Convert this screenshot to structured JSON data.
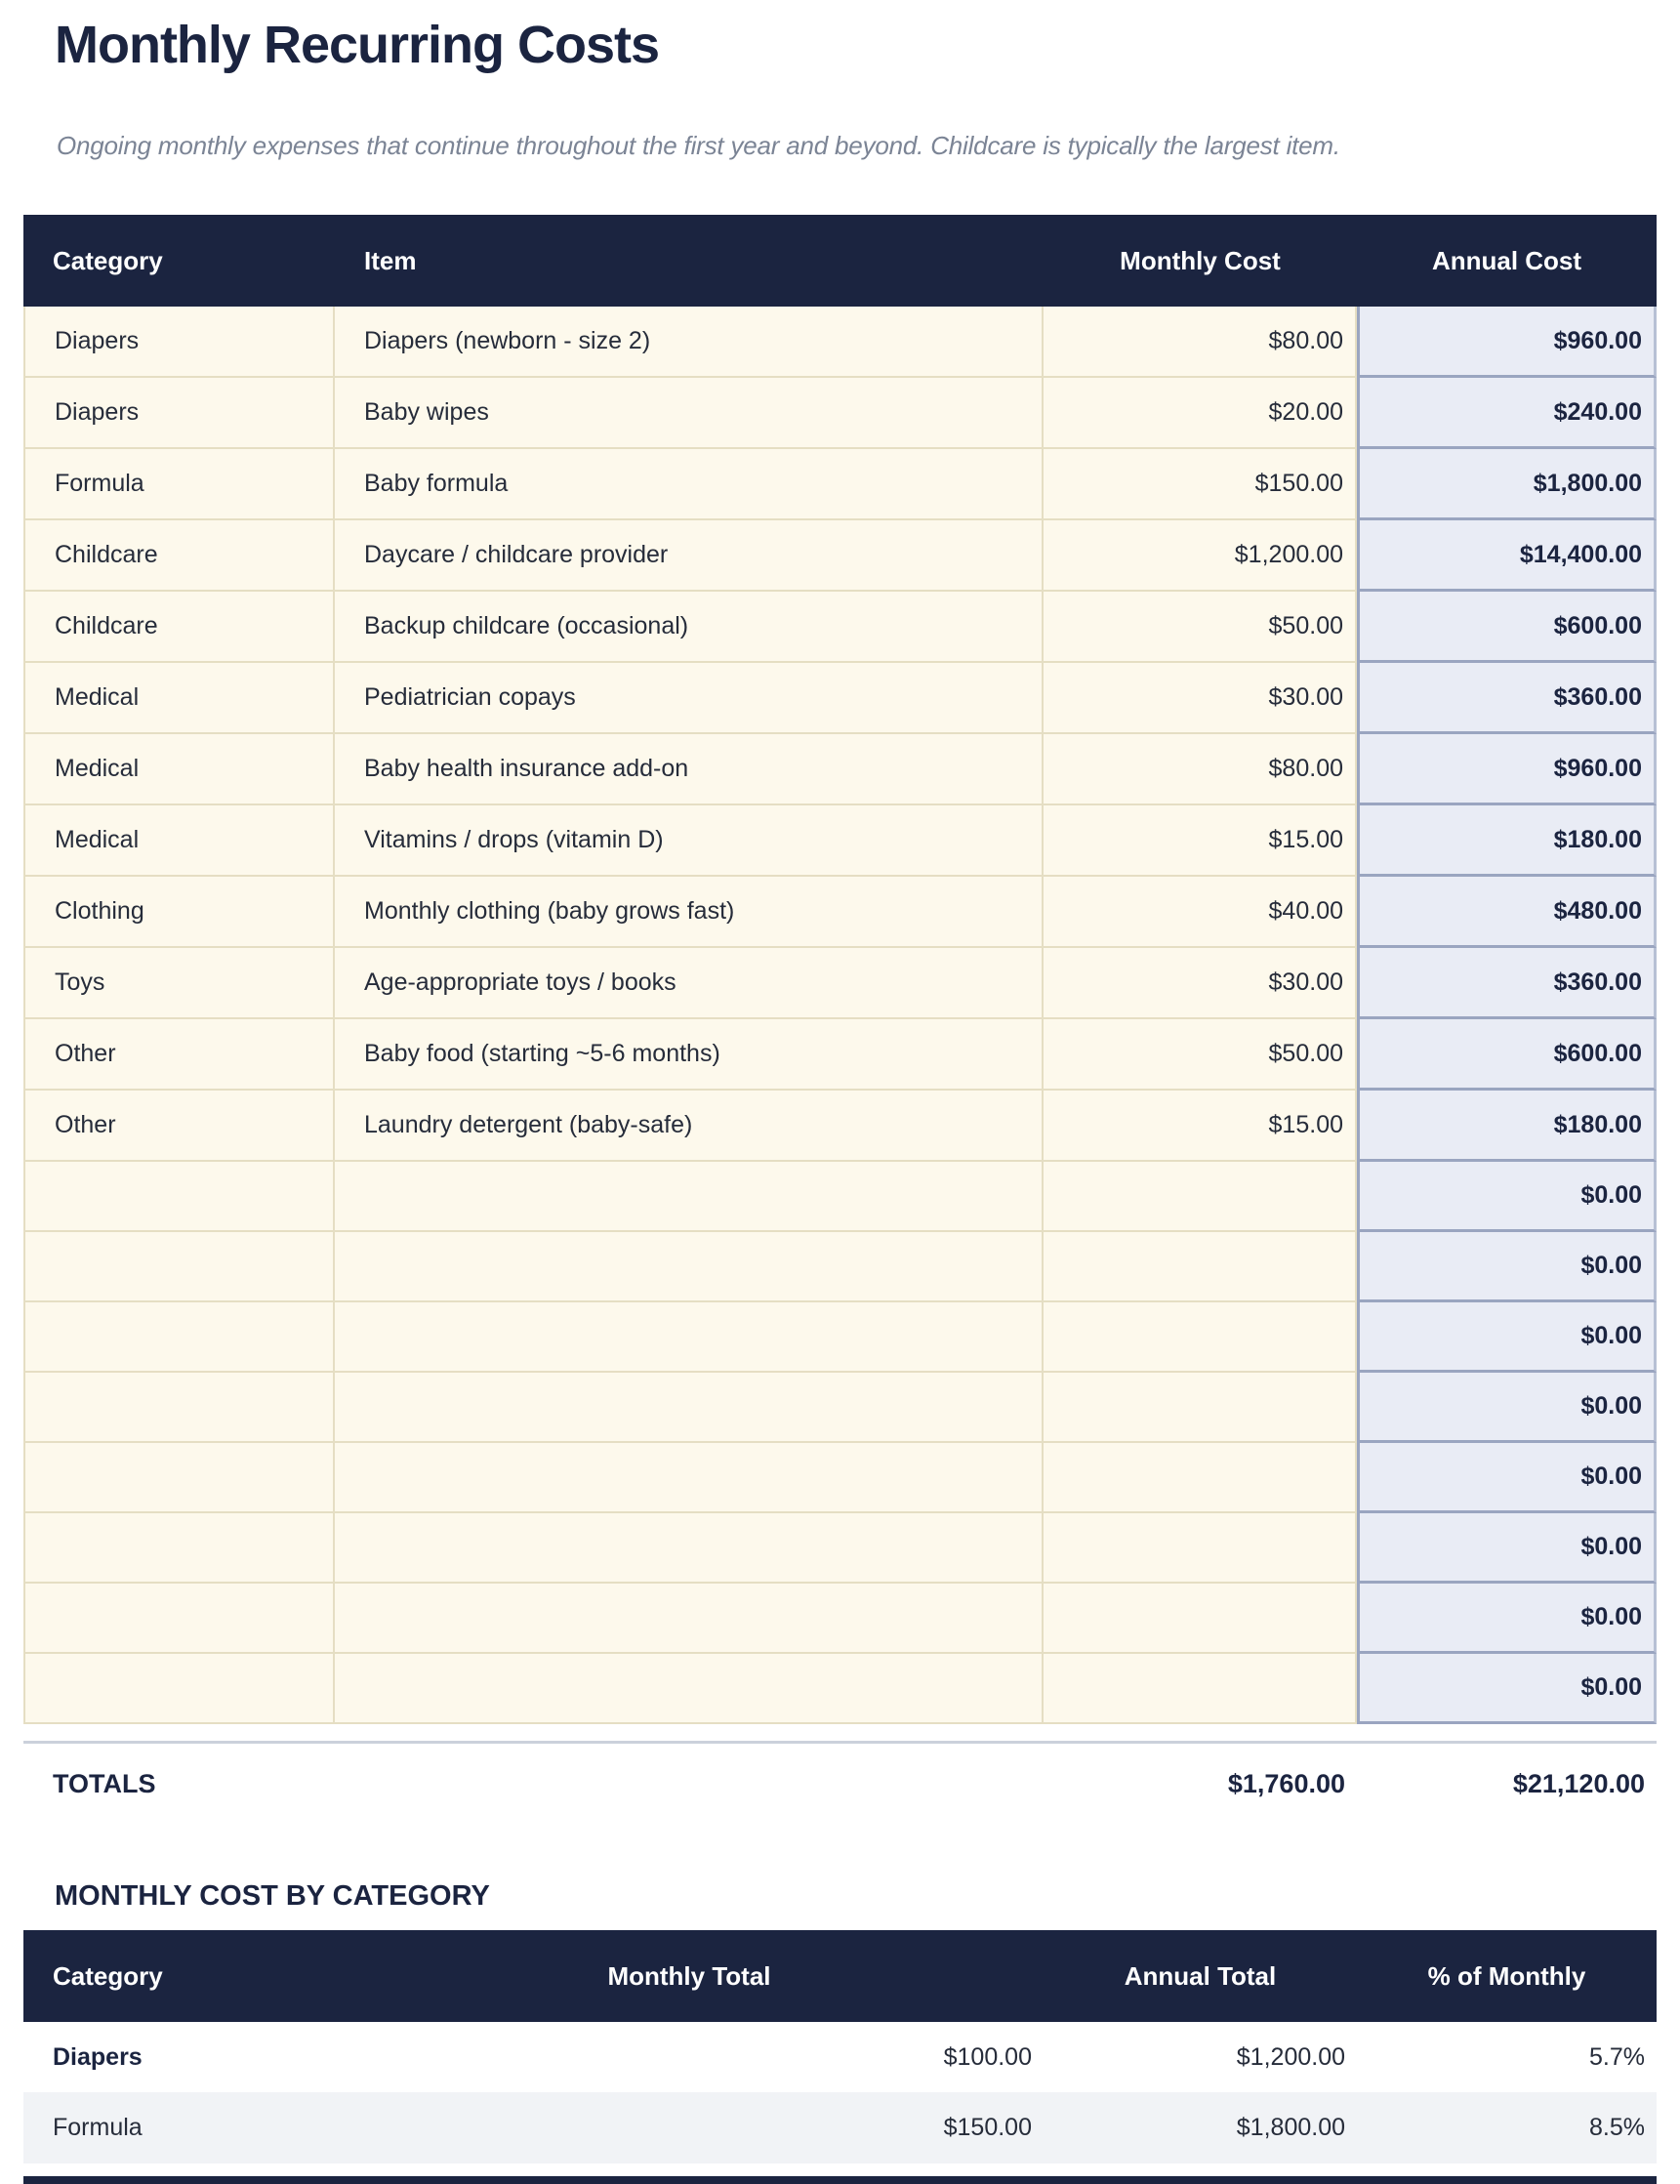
{
  "page": {
    "title": "Monthly Recurring Costs",
    "subtitle": "Ongoing monthly expenses that continue throughout the first year and beyond. Childcare is typically the largest item."
  },
  "colors": {
    "header_navy": "#1b2440",
    "body_text": "#262c3a",
    "cream_cell_bg": "#fdf9ec",
    "cream_border": "#e5dec3",
    "annual_cell_bg": "#e9ecf5",
    "annual_border": "#9aa5c0",
    "subtitle_gray": "#7b8495",
    "alt_row_gray": "#f1f3f6",
    "separator_gray": "#cbd1db"
  },
  "costs_table": {
    "columns": [
      "Category",
      "Item",
      "Monthly Cost",
      "Annual Cost"
    ],
    "rows": [
      {
        "category": "Diapers",
        "item": "Diapers (newborn - size 2)",
        "monthly": "$80.00",
        "annual": "$960.00"
      },
      {
        "category": "Diapers",
        "item": "Baby wipes",
        "monthly": "$20.00",
        "annual": "$240.00"
      },
      {
        "category": "Formula",
        "item": "Baby formula",
        "monthly": "$150.00",
        "annual": "$1,800.00"
      },
      {
        "category": "Childcare",
        "item": "Daycare / childcare provider",
        "monthly": "$1,200.00",
        "annual": "$14,400.00"
      },
      {
        "category": "Childcare",
        "item": "Backup childcare (occasional)",
        "monthly": "$50.00",
        "annual": "$600.00"
      },
      {
        "category": "Medical",
        "item": "Pediatrician copays",
        "monthly": "$30.00",
        "annual": "$360.00"
      },
      {
        "category": "Medical",
        "item": "Baby health insurance add-on",
        "monthly": "$80.00",
        "annual": "$960.00"
      },
      {
        "category": "Medical",
        "item": "Vitamins / drops (vitamin D)",
        "monthly": "$15.00",
        "annual": "$180.00"
      },
      {
        "category": "Clothing",
        "item": "Monthly clothing (baby grows fast)",
        "monthly": "$40.00",
        "annual": "$480.00"
      },
      {
        "category": "Toys",
        "item": "Age-appropriate toys / books",
        "monthly": "$30.00",
        "annual": "$360.00"
      },
      {
        "category": "Other",
        "item": "Baby food (starting ~5-6 months)",
        "monthly": "$50.00",
        "annual": "$600.00"
      },
      {
        "category": "Other",
        "item": "Laundry detergent (baby-safe)",
        "monthly": "$15.00",
        "annual": "$180.00"
      },
      {
        "category": "",
        "item": "",
        "monthly": "",
        "annual": "$0.00"
      },
      {
        "category": "",
        "item": "",
        "monthly": "",
        "annual": "$0.00"
      },
      {
        "category": "",
        "item": "",
        "monthly": "",
        "annual": "$0.00"
      },
      {
        "category": "",
        "item": "",
        "monthly": "",
        "annual": "$0.00"
      },
      {
        "category": "",
        "item": "",
        "monthly": "",
        "annual": "$0.00"
      },
      {
        "category": "",
        "item": "",
        "monthly": "",
        "annual": "$0.00"
      },
      {
        "category": "",
        "item": "",
        "monthly": "",
        "annual": "$0.00"
      },
      {
        "category": "",
        "item": "",
        "monthly": "",
        "annual": "$0.00"
      }
    ],
    "totals": {
      "label": "TOTALS",
      "monthly": "$1,760.00",
      "annual": "$21,120.00"
    }
  },
  "category_section": {
    "heading": "MONTHLY COST BY CATEGORY",
    "columns": [
      "Category",
      "Monthly Total",
      "Annual Total",
      "% of Monthly"
    ],
    "rows": [
      {
        "category": "Diapers",
        "monthly": "$100.00",
        "annual": "$1,200.00",
        "percent": "5.7%"
      },
      {
        "category": "Formula",
        "monthly": "$150.00",
        "annual": "$1,800.00",
        "percent": "8.5%"
      }
    ]
  }
}
